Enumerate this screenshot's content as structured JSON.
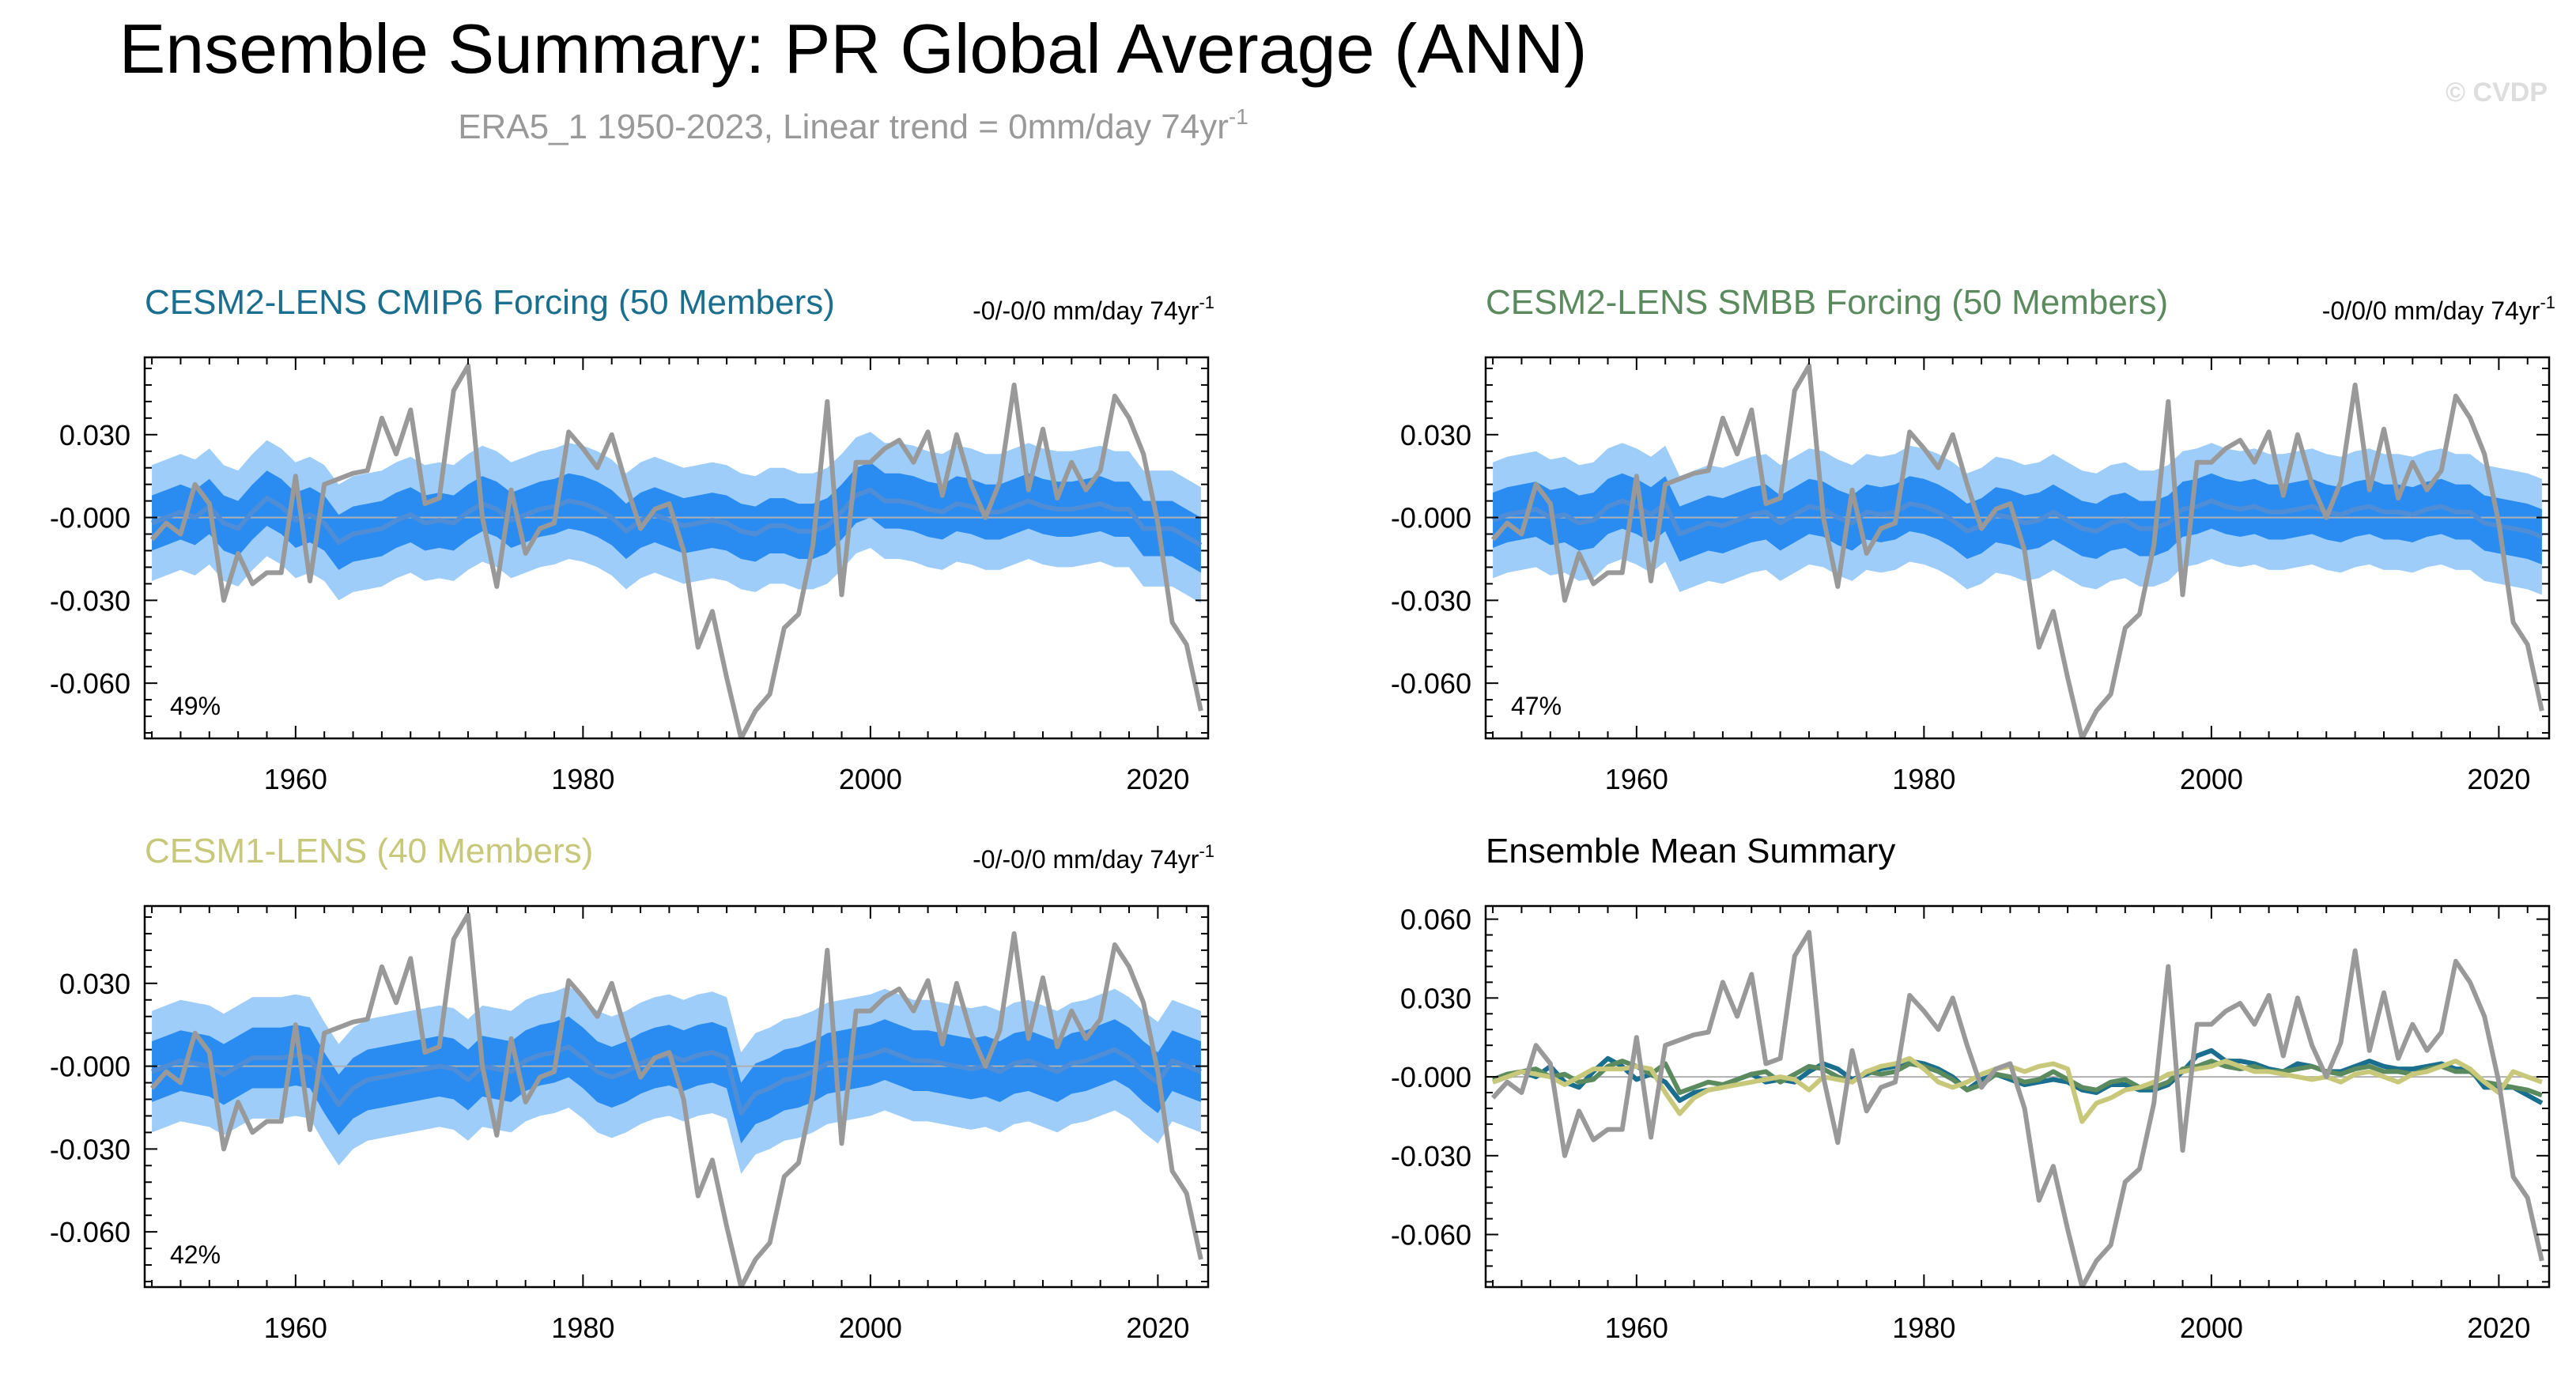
{
  "figure": {
    "title": "Ensemble Summary: PR Global Average (ANN)",
    "subtitle_main": "ERA5_1 1950-2023, Linear trend = 0mm/day 74yr",
    "subtitle_sup": "-1",
    "watermark": "© CVDP"
  },
  "colors": {
    "obs": "#999999",
    "band_outer": "#9ecdfa",
    "band_inner": "#2a8cf0",
    "ens_mean": "#4f8dd6",
    "cmip6": "#1a6e8e",
    "smbb": "#5a8a5e",
    "lens1": "#c8c87a",
    "title_gray": "#999999"
  },
  "chart_data": [
    {
      "type": "line",
      "title": "CESM2-LENS CMIP6 Forcing (50 Members)",
      "title_color": "#1a6e8e",
      "trend_main": "-0/-0/0 mm/day 74yr",
      "trend_sup": "-1",
      "percent": "49%",
      "xlim": [
        1949.5,
        2023.5
      ],
      "ylim": [
        -0.08,
        0.058
      ],
      "yticks": [
        0.03,
        -0.0,
        -0.03,
        -0.06
      ],
      "ytick_labels": [
        "0.030",
        "-0.000",
        "-0.030",
        "-0.060"
      ],
      "xticks": [
        1960,
        1980,
        2000,
        2020
      ],
      "xtick_labels": [
        "1960",
        "1980",
        "2000",
        "2020"
      ],
      "x_start": 1950,
      "obs": [
        -0.008,
        -0.002,
        -0.006,
        0.012,
        0.005,
        -0.03,
        -0.013,
        -0.024,
        -0.02,
        -0.02,
        0.015,
        -0.023,
        0.012,
        0.014,
        0.016,
        0.017,
        0.036,
        0.023,
        0.039,
        0.005,
        0.007,
        0.046,
        0.055,
        0.0,
        -0.025,
        0.01,
        -0.013,
        -0.004,
        -0.002,
        0.031,
        0.025,
        0.018,
        0.03,
        0.012,
        -0.004,
        0.003,
        0.005,
        -0.012,
        -0.047,
        -0.034,
        -0.058,
        -0.08,
        -0.07,
        -0.064,
        -0.04,
        -0.035,
        -0.01,
        0.042,
        -0.028,
        0.02,
        0.02,
        0.025,
        0.028,
        0.02,
        0.031,
        0.008,
        0.03,
        0.012,
        0.0,
        0.013,
        0.048,
        0.01,
        0.032,
        0.007,
        0.02,
        0.01,
        0.017,
        0.044,
        0.036,
        0.023,
        -0.002,
        -0.038,
        -0.046,
        -0.07
      ],
      "mean": [
        -0.002,
        0.0,
        0.002,
        0.0,
        0.004,
        -0.002,
        -0.004,
        0.002,
        0.007,
        0.004,
        -0.001,
        0.001,
        -0.002,
        -0.009,
        -0.006,
        -0.005,
        -0.004,
        -0.001,
        0.001,
        -0.002,
        -0.001,
        -0.002,
        0.002,
        0.005,
        0.003,
        -0.001,
        0.001,
        0.003,
        0.004,
        0.006,
        0.005,
        0.003,
        0.0,
        -0.005,
        -0.001,
        0.001,
        -0.001,
        -0.003,
        -0.002,
        -0.001,
        -0.002,
        -0.005,
        -0.006,
        -0.003,
        -0.003,
        -0.005,
        -0.005,
        -0.003,
        0.002,
        0.008,
        0.01,
        0.006,
        0.006,
        0.005,
        0.003,
        0.002,
        0.005,
        0.004,
        0.002,
        0.002,
        0.004,
        0.006,
        0.004,
        0.003,
        0.003,
        0.004,
        0.005,
        0.003,
        0.003,
        -0.004,
        -0.004,
        -0.004,
        -0.007,
        -0.01
      ],
      "inner_half": 0.01,
      "outer_half": 0.021
    },
    {
      "type": "line",
      "title": "CESM2-LENS SMBB Forcing (50 Members)",
      "title_color": "#5a8a5e",
      "trend_main": "-0/0/0 mm/day 74yr",
      "trend_sup": "-1",
      "percent": "47%",
      "xlim": [
        1949.5,
        2023.5
      ],
      "ylim": [
        -0.08,
        0.058
      ],
      "yticks": [
        0.03,
        -0.0,
        -0.03,
        -0.06
      ],
      "ytick_labels": [
        "0.030",
        "-0.000",
        "-0.030",
        "-0.060"
      ],
      "xticks": [
        1960,
        1980,
        2000,
        2020
      ],
      "xtick_labels": [
        "1960",
        "1980",
        "2000",
        "2020"
      ],
      "x_start": 1950,
      "obs": [
        -0.008,
        -0.002,
        -0.006,
        0.012,
        0.005,
        -0.03,
        -0.013,
        -0.024,
        -0.02,
        -0.02,
        0.015,
        -0.023,
        0.012,
        0.014,
        0.016,
        0.017,
        0.036,
        0.023,
        0.039,
        0.005,
        0.007,
        0.046,
        0.055,
        0.0,
        -0.025,
        0.01,
        -0.013,
        -0.004,
        -0.002,
        0.031,
        0.025,
        0.018,
        0.03,
        0.012,
        -0.004,
        0.003,
        0.005,
        -0.012,
        -0.047,
        -0.034,
        -0.058,
        -0.08,
        -0.07,
        -0.064,
        -0.04,
        -0.035,
        -0.01,
        0.042,
        -0.028,
        0.02,
        0.02,
        0.025,
        0.028,
        0.02,
        0.031,
        0.008,
        0.03,
        0.012,
        0.0,
        0.013,
        0.048,
        0.01,
        0.032,
        0.007,
        0.02,
        0.01,
        0.017,
        0.044,
        0.036,
        0.023,
        -0.002,
        -0.038,
        -0.046,
        -0.07
      ],
      "mean": [
        -0.001,
        0.001,
        0.002,
        0.003,
        0.0,
        0.001,
        -0.002,
        -0.001,
        0.004,
        0.006,
        0.004,
        0.001,
        0.005,
        -0.006,
        -0.004,
        -0.002,
        -0.003,
        -0.001,
        0.001,
        0.002,
        -0.002,
        0.001,
        0.004,
        0.003,
        0.0,
        -0.002,
        0.002,
        0.001,
        0.002,
        0.005,
        0.004,
        0.002,
        -0.001,
        -0.005,
        -0.003,
        0.001,
        0.0,
        -0.002,
        -0.001,
        0.002,
        -0.001,
        -0.004,
        -0.005,
        -0.002,
        -0.001,
        -0.004,
        -0.004,
        -0.002,
        0.003,
        0.004,
        0.006,
        0.004,
        0.003,
        0.004,
        0.002,
        0.002,
        0.003,
        0.004,
        0.002,
        0.001,
        0.003,
        0.004,
        0.002,
        0.002,
        0.001,
        0.003,
        0.004,
        0.002,
        0.002,
        -0.002,
        -0.003,
        -0.004,
        -0.005,
        -0.007
      ],
      "inner_half": 0.01,
      "outer_half": 0.021
    },
    {
      "type": "line",
      "title": "CESM1-LENS (40 Members)",
      "title_color": "#c8c87a",
      "trend_main": "-0/-0/0 mm/day 74yr",
      "trend_sup": "-1",
      "percent": "42%",
      "xlim": [
        1949.5,
        2023.5
      ],
      "ylim": [
        -0.08,
        0.058
      ],
      "yticks": [
        0.03,
        -0.0,
        -0.03,
        -0.06
      ],
      "ytick_labels": [
        "0.030",
        "-0.000",
        "-0.030",
        "-0.060"
      ],
      "xticks": [
        1960,
        1980,
        2000,
        2020
      ],
      "xtick_labels": [
        "1960",
        "1980",
        "2000",
        "2020"
      ],
      "x_start": 1950,
      "obs": [
        -0.008,
        -0.002,
        -0.006,
        0.012,
        0.005,
        -0.03,
        -0.013,
        -0.024,
        -0.02,
        -0.02,
        0.015,
        -0.023,
        0.012,
        0.014,
        0.016,
        0.017,
        0.036,
        0.023,
        0.039,
        0.005,
        0.007,
        0.046,
        0.055,
        0.0,
        -0.025,
        0.01,
        -0.013,
        -0.004,
        -0.002,
        0.031,
        0.025,
        0.018,
        0.03,
        0.012,
        -0.004,
        0.003,
        0.005,
        -0.012,
        -0.047,
        -0.034,
        -0.058,
        -0.08,
        -0.07,
        -0.064,
        -0.04,
        -0.035,
        -0.01,
        0.042,
        -0.028,
        0.02,
        0.02,
        0.025,
        0.028,
        0.02,
        0.031,
        0.008,
        0.03,
        0.012,
        0.0,
        0.013,
        0.048,
        0.01,
        0.032,
        0.007,
        0.02,
        0.01,
        0.017,
        0.044,
        0.036,
        0.023,
        -0.002,
        -0.038,
        -0.046,
        -0.07
      ],
      "mean": [
        -0.002,
        0.0,
        0.002,
        0.001,
        0.0,
        -0.003,
        0.0,
        0.003,
        0.003,
        0.003,
        0.004,
        0.003,
        -0.006,
        -0.014,
        -0.008,
        -0.005,
        -0.004,
        -0.003,
        -0.002,
        -0.001,
        0.0,
        -0.001,
        -0.005,
        0.0,
        -0.001,
        -0.002,
        0.002,
        0.004,
        0.005,
        0.007,
        0.003,
        -0.002,
        -0.004,
        -0.002,
        0.001,
        0.003,
        0.004,
        0.002,
        0.004,
        0.005,
        0.003,
        -0.017,
        -0.01,
        -0.008,
        -0.005,
        -0.004,
        -0.002,
        0.001,
        0.002,
        0.003,
        0.004,
        0.006,
        0.004,
        0.002,
        0.002,
        0.001,
        0.0,
        -0.001,
        0.0,
        -0.002,
        0.001,
        0.002,
        0.0,
        -0.002,
        0.001,
        0.002,
        0.004,
        0.006,
        0.003,
        -0.002,
        -0.006,
        0.002,
        0.0,
        -0.002
      ],
      "inner_half": 0.011,
      "outer_half": 0.022
    },
    {
      "type": "line",
      "title": "Ensemble Mean Summary",
      "title_color": "#000000",
      "percent": "",
      "xlim": [
        1949.5,
        2023.5
      ],
      "ylim": [
        -0.08,
        0.065
      ],
      "yticks": [
        0.06,
        0.03,
        -0.0,
        -0.03,
        -0.06
      ],
      "ytick_labels": [
        "0.060",
        "0.030",
        "-0.000",
        "-0.030",
        "-0.060"
      ],
      "xticks": [
        1960,
        1980,
        2000,
        2020
      ],
      "xtick_labels": [
        "1960",
        "1980",
        "2000",
        "2020"
      ],
      "x_start": 1950,
      "obs": [
        -0.008,
        -0.002,
        -0.006,
        0.012,
        0.005,
        -0.03,
        -0.013,
        -0.024,
        -0.02,
        -0.02,
        0.015,
        -0.023,
        0.012,
        0.014,
        0.016,
        0.017,
        0.036,
        0.023,
        0.039,
        0.005,
        0.007,
        0.046,
        0.055,
        0.0,
        -0.025,
        0.01,
        -0.013,
        -0.004,
        -0.002,
        0.031,
        0.025,
        0.018,
        0.03,
        0.012,
        -0.004,
        0.003,
        0.005,
        -0.012,
        -0.047,
        -0.034,
        -0.058,
        -0.08,
        -0.07,
        -0.064,
        -0.04,
        -0.035,
        -0.01,
        0.042,
        -0.028,
        0.02,
        0.02,
        0.025,
        0.028,
        0.02,
        0.031,
        0.008,
        0.03,
        0.012,
        0.0,
        0.013,
        0.048,
        0.01,
        0.032,
        0.007,
        0.02,
        0.01,
        0.017,
        0.044,
        0.036,
        0.023,
        -0.002,
        -0.038,
        -0.046,
        -0.07
      ],
      "series": [
        {
          "name": "CESM2-LENS CMIP6 Forcing",
          "color": "#1a6e8e",
          "values": [
            -0.002,
            0.0,
            0.002,
            0.0,
            0.004,
            -0.002,
            -0.004,
            0.002,
            0.007,
            0.004,
            -0.001,
            0.001,
            -0.002,
            -0.009,
            -0.006,
            -0.005,
            -0.004,
            -0.001,
            0.001,
            -0.002,
            -0.001,
            -0.002,
            0.002,
            0.005,
            0.003,
            -0.001,
            0.001,
            0.003,
            0.004,
            0.006,
            0.005,
            0.003,
            0.0,
            -0.005,
            -0.001,
            0.001,
            -0.001,
            -0.003,
            -0.002,
            -0.001,
            -0.002,
            -0.005,
            -0.006,
            -0.003,
            -0.003,
            -0.005,
            -0.005,
            -0.003,
            0.002,
            0.008,
            0.01,
            0.006,
            0.006,
            0.005,
            0.003,
            0.002,
            0.005,
            0.004,
            0.002,
            0.002,
            0.004,
            0.006,
            0.004,
            0.003,
            0.003,
            0.004,
            0.005,
            0.003,
            0.003,
            -0.004,
            -0.004,
            -0.004,
            -0.007,
            -0.01
          ]
        },
        {
          "name": "CESM2-LENS SMBB Forcing",
          "color": "#5a8a5e",
          "values": [
            -0.001,
            0.001,
            0.002,
            0.003,
            0.0,
            0.001,
            -0.002,
            -0.001,
            0.004,
            0.006,
            0.004,
            0.001,
            0.005,
            -0.006,
            -0.004,
            -0.002,
            -0.003,
            -0.001,
            0.001,
            0.002,
            -0.002,
            0.001,
            0.004,
            0.003,
            0.0,
            -0.002,
            0.002,
            0.001,
            0.002,
            0.005,
            0.004,
            0.002,
            -0.001,
            -0.005,
            -0.003,
            0.001,
            0.0,
            -0.002,
            -0.001,
            0.002,
            -0.001,
            -0.004,
            -0.005,
            -0.002,
            -0.001,
            -0.004,
            -0.004,
            -0.002,
            0.003,
            0.004,
            0.006,
            0.004,
            0.003,
            0.004,
            0.002,
            0.002,
            0.003,
            0.004,
            0.002,
            0.001,
            0.003,
            0.004,
            0.002,
            0.002,
            0.001,
            0.003,
            0.004,
            0.002,
            0.002,
            -0.002,
            -0.003,
            -0.004,
            -0.005,
            -0.007
          ]
        },
        {
          "name": "CESM1-LENS",
          "color": "#c8c87a",
          "values": [
            -0.002,
            0.0,
            0.002,
            0.001,
            0.0,
            -0.003,
            0.0,
            0.003,
            0.003,
            0.003,
            0.004,
            0.003,
            -0.006,
            -0.014,
            -0.008,
            -0.005,
            -0.004,
            -0.003,
            -0.002,
            -0.001,
            0.0,
            -0.001,
            -0.005,
            0.0,
            -0.001,
            -0.002,
            0.002,
            0.004,
            0.005,
            0.007,
            0.003,
            -0.002,
            -0.004,
            -0.002,
            0.001,
            0.003,
            0.004,
            0.002,
            0.004,
            0.005,
            0.003,
            -0.017,
            -0.01,
            -0.008,
            -0.005,
            -0.004,
            -0.002,
            0.001,
            0.002,
            0.003,
            0.004,
            0.006,
            0.004,
            0.002,
            0.002,
            0.001,
            0.0,
            -0.001,
            0.0,
            -0.002,
            0.001,
            0.002,
            0.0,
            -0.002,
            0.001,
            0.002,
            0.004,
            0.006,
            0.003,
            -0.002,
            -0.006,
            0.002,
            0.0,
            -0.002
          ]
        }
      ]
    }
  ]
}
